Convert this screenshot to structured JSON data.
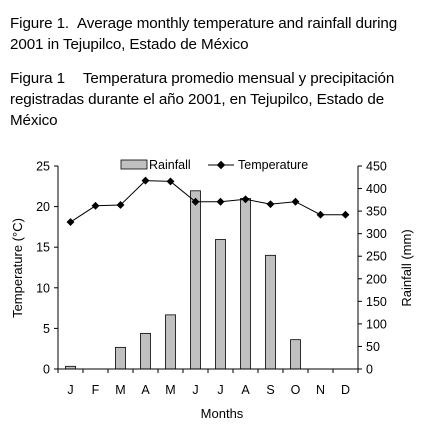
{
  "caption_en": {
    "label": "Figure 1.",
    "text": "Average monthly temperature and rainfall during 2001 in Tejupilco, Estado de México"
  },
  "caption_es": {
    "label": "Figura 1",
    "text": "Temperatura promedio mensual y precipitación registradas durante el año 2001, en Tejupilco, Estado de México"
  },
  "chart_data": {
    "type": "bar+line",
    "categories": [
      "J",
      "F",
      "M",
      "A",
      "M",
      "J",
      "J",
      "A",
      "S",
      "O",
      "N",
      "D"
    ],
    "xlabel": "Months",
    "y_left": {
      "label": "Temperature (°C)",
      "range": [
        0,
        25
      ],
      "ticks": [
        0,
        5,
        10,
        15,
        20,
        25
      ]
    },
    "y_right": {
      "label": "Rainfall (mm)",
      "range": [
        0,
        450
      ],
      "ticks": [
        0,
        50,
        100,
        150,
        200,
        250,
        300,
        350,
        400,
        450
      ]
    },
    "series": [
      {
        "name": "Rainfall",
        "kind": "bar",
        "axis": "right",
        "color": "#c0c0c0",
        "values": [
          6,
          0,
          48,
          79,
          120,
          395,
          287,
          378,
          252,
          65,
          0,
          0
        ]
      },
      {
        "name": "Temperature",
        "kind": "line",
        "axis": "left",
        "color": "#000000",
        "values": [
          18.1,
          20.1,
          20.2,
          23.2,
          23.1,
          20.6,
          20.6,
          20.9,
          20.3,
          20.6,
          19.0,
          19.0
        ]
      }
    ],
    "legend": "top",
    "grid": false
  }
}
